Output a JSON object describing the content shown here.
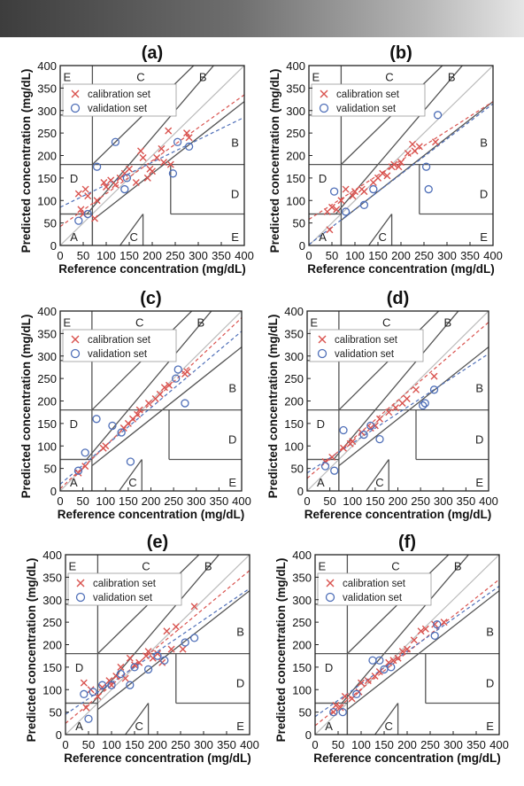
{
  "colors": {
    "calibration": "#d9534f",
    "validation": "#4f6fb8",
    "zone_line": "#555555",
    "identity_line": "#bbbbbb"
  },
  "chart_data": [
    {
      "type": "scatter",
      "title": "(a)",
      "xlabel": "Reference concentration (mg/dL)",
      "ylabel": "Predicted concentration (mg/dL)",
      "xlim": [
        0,
        400
      ],
      "ylim": [
        0,
        400
      ],
      "xticks": [
        0,
        50,
        100,
        150,
        200,
        250,
        300,
        350,
        400
      ],
      "yticks": [
        0,
        50,
        100,
        150,
        200,
        250,
        300,
        350,
        400
      ],
      "zone_labels": [
        "A",
        "B",
        "B",
        "C",
        "C",
        "D",
        "D",
        "E",
        "E"
      ],
      "legend": {
        "position": "top-left",
        "entries": [
          "calibration set",
          "validation set"
        ]
      },
      "series": [
        {
          "name": "calibration set",
          "marker": "x",
          "x": [
            40,
            45,
            50,
            55,
            60,
            75,
            80,
            95,
            100,
            110,
            120,
            130,
            140,
            150,
            165,
            175,
            180,
            190,
            195,
            200,
            210,
            220,
            225,
            235,
            240,
            275,
            280
          ],
          "y": [
            115,
            80,
            70,
            125,
            110,
            60,
            100,
            140,
            130,
            145,
            135,
            150,
            160,
            170,
            140,
            210,
            195,
            150,
            170,
            165,
            195,
            215,
            185,
            255,
            180,
            250,
            240
          ],
          "fit": {
            "x": [
              0,
              400
            ],
            "y": [
              42,
              335
            ]
          }
        },
        {
          "name": "validation set",
          "marker": "o",
          "x": [
            40,
            60,
            80,
            120,
            140,
            145,
            245,
            255,
            280
          ],
          "y": [
            55,
            70,
            175,
            230,
            125,
            150,
            160,
            230,
            220
          ],
          "fit": {
            "x": [
              0,
              400
            ],
            "y": [
              85,
              285
            ]
          }
        }
      ]
    },
    {
      "type": "scatter",
      "title": "(b)",
      "xlabel": "Reference concentration (mg/dL)",
      "ylabel": "Predicted concentration (mg/dL)",
      "xlim": [
        0,
        400
      ],
      "ylim": [
        0,
        400
      ],
      "xticks": [
        0,
        50,
        100,
        150,
        200,
        250,
        300,
        350,
        400
      ],
      "yticks": [
        0,
        50,
        100,
        150,
        200,
        250,
        300,
        350,
        400
      ],
      "zone_labels": [
        "A",
        "B",
        "B",
        "C",
        "C",
        "D",
        "D",
        "E",
        "E"
      ],
      "legend": {
        "position": "top-left",
        "entries": [
          "calibration set",
          "validation set"
        ]
      },
      "series": [
        {
          "name": "calibration set",
          "marker": "x",
          "x": [
            40,
            45,
            50,
            60,
            70,
            80,
            95,
            100,
            115,
            120,
            140,
            150,
            160,
            170,
            180,
            185,
            195,
            200,
            215,
            225,
            230,
            240,
            275
          ],
          "y": [
            75,
            35,
            85,
            80,
            100,
            125,
            110,
            120,
            125,
            120,
            140,
            150,
            160,
            155,
            175,
            180,
            175,
            185,
            205,
            225,
            210,
            220,
            230
          ],
          "fit": {
            "x": [
              0,
              400
            ],
            "y": [
              58,
              320
            ]
          }
        },
        {
          "name": "validation set",
          "marker": "o",
          "x": [
            55,
            80,
            120,
            140,
            255,
            260,
            280
          ],
          "y": [
            120,
            75,
            90,
            125,
            175,
            125,
            290
          ],
          "fit": {
            "x": [
              0,
              400
            ],
            "y": [
              2,
              315
            ]
          }
        }
      ]
    },
    {
      "type": "scatter",
      "title": "(c)",
      "xlabel": "Reference concentration (mg/dL)",
      "ylabel": "Predicted concentration (mg/dL)",
      "xlim": [
        0,
        400
      ],
      "ylim": [
        0,
        400
      ],
      "xticks": [
        0,
        50,
        100,
        150,
        200,
        250,
        300,
        350,
        400
      ],
      "yticks": [
        0,
        50,
        100,
        150,
        200,
        250,
        300,
        350,
        400
      ],
      "zone_labels": [
        "A",
        "B",
        "B",
        "C",
        "C",
        "D",
        "D",
        "E",
        "E"
      ],
      "legend": {
        "position": "top-left",
        "entries": [
          "calibration set",
          "validation set"
        ]
      },
      "series": [
        {
          "name": "calibration set",
          "marker": "x",
          "x": [
            40,
            55,
            95,
            100,
            140,
            150,
            160,
            170,
            175,
            195,
            210,
            220,
            230,
            240,
            275,
            280
          ],
          "y": [
            40,
            55,
            95,
            100,
            140,
            150,
            160,
            170,
            180,
            195,
            205,
            215,
            230,
            235,
            260,
            265
          ],
          "fit": {
            "x": [
              0,
              400
            ],
            "y": [
              5,
              385
            ]
          }
        },
        {
          "name": "validation set",
          "marker": "o",
          "x": [
            40,
            55,
            80,
            115,
            135,
            155,
            255,
            260,
            275
          ],
          "y": [
            45,
            85,
            160,
            145,
            130,
            65,
            250,
            270,
            195
          ],
          "fit": {
            "x": [
              0,
              400
            ],
            "y": [
              15,
              355
            ]
          }
        }
      ]
    },
    {
      "type": "scatter",
      "title": "(d)",
      "xlabel": "Reference concentration (mg/dL)",
      "ylabel": "Predicted concentration (mg/dL)",
      "xlim": [
        0,
        400
      ],
      "ylim": [
        0,
        400
      ],
      "xticks": [
        0,
        50,
        100,
        150,
        200,
        250,
        300,
        350,
        400
      ],
      "yticks": [
        0,
        50,
        100,
        150,
        200,
        250,
        300,
        350,
        400
      ],
      "zone_labels": [
        "A",
        "B",
        "B",
        "C",
        "C",
        "D",
        "D",
        "E",
        "E"
      ],
      "legend": {
        "position": "top-left",
        "entries": [
          "calibration set",
          "validation set"
        ]
      },
      "series": [
        {
          "name": "calibration set",
          "marker": "x",
          "x": [
            40,
            55,
            80,
            95,
            100,
            120,
            140,
            150,
            160,
            180,
            195,
            210,
            220,
            240,
            280
          ],
          "y": [
            65,
            75,
            95,
            105,
            110,
            130,
            140,
            145,
            160,
            175,
            185,
            195,
            205,
            225,
            255
          ],
          "fit": {
            "x": [
              0,
              400
            ],
            "y": [
              28,
              375
            ]
          }
        },
        {
          "name": "validation set",
          "marker": "o",
          "x": [
            40,
            60,
            80,
            125,
            140,
            160,
            255,
            260,
            280
          ],
          "y": [
            55,
            45,
            135,
            125,
            145,
            115,
            190,
            195,
            225
          ],
          "fit": {
            "x": [
              0,
              400
            ],
            "y": [
              40,
              305
            ]
          }
        }
      ]
    },
    {
      "type": "scatter",
      "title": "(e)",
      "xlabel": "Reference concentration (mg/dL)",
      "ylabel": "Predicted concentration (mg/dL)",
      "xlim": [
        0,
        400
      ],
      "ylim": [
        0,
        400
      ],
      "xticks": [
        0,
        50,
        100,
        150,
        200,
        250,
        300,
        350,
        400
      ],
      "yticks": [
        0,
        50,
        100,
        150,
        200,
        250,
        300,
        350,
        400
      ],
      "zone_labels": [
        "A",
        "B",
        "B",
        "C",
        "C",
        "D",
        "D",
        "E",
        "E"
      ],
      "legend": {
        "position": "top-left",
        "entries": [
          "calibration set",
          "validation set"
        ]
      },
      "series": [
        {
          "name": "calibration set",
          "marker": "x",
          "x": [
            40,
            45,
            55,
            70,
            80,
            95,
            100,
            110,
            120,
            130,
            140,
            150,
            160,
            175,
            180,
            190,
            200,
            210,
            220,
            230,
            240,
            255,
            280
          ],
          "y": [
            115,
            60,
            100,
            85,
            105,
            120,
            110,
            130,
            150,
            125,
            170,
            155,
            160,
            175,
            185,
            170,
            180,
            160,
            230,
            190,
            240,
            190,
            285
          ],
          "fit": {
            "x": [
              0,
              400
            ],
            "y": [
              25,
              365
            ]
          }
        },
        {
          "name": "validation set",
          "marker": "o",
          "x": [
            40,
            50,
            60,
            80,
            100,
            120,
            140,
            150,
            180,
            200,
            215,
            260,
            280
          ],
          "y": [
            90,
            35,
            95,
            110,
            110,
            135,
            110,
            150,
            145,
            175,
            165,
            205,
            215
          ],
          "fit": {
            "x": [
              0,
              400
            ],
            "y": [
              45,
              325
            ]
          }
        }
      ]
    },
    {
      "type": "scatter",
      "title": "(f)",
      "xlabel": "Reference concentration (mg/dL)",
      "ylabel": "Predicted concentration (mg/dL)",
      "xlim": [
        0,
        400
      ],
      "ylim": [
        0,
        400
      ],
      "xticks": [
        0,
        50,
        100,
        150,
        200,
        250,
        300,
        350,
        400
      ],
      "yticks": [
        0,
        50,
        100,
        150,
        200,
        250,
        300,
        350,
        400
      ],
      "zone_labels": [
        "A",
        "B",
        "B",
        "C",
        "C",
        "D",
        "D",
        "E",
        "E"
      ],
      "legend": {
        "position": "top-left",
        "entries": [
          "calibration set",
          "validation set"
        ]
      },
      "series": [
        {
          "name": "calibration set",
          "marker": "x",
          "x": [
            40,
            45,
            55,
            65,
            80,
            95,
            100,
            115,
            130,
            140,
            160,
            170,
            180,
            190,
            200,
            215,
            230,
            240,
            260,
            280
          ],
          "y": [
            50,
            65,
            60,
            85,
            80,
            95,
            115,
            120,
            130,
            140,
            160,
            165,
            170,
            185,
            190,
            210,
            230,
            235,
            245,
            250
          ],
          "fit": {
            "x": [
              0,
              400
            ],
            "y": [
              20,
              345
            ]
          }
        },
        {
          "name": "validation set",
          "marker": "o",
          "x": [
            40,
            60,
            90,
            125,
            140,
            150,
            165,
            260,
            265
          ],
          "y": [
            50,
            50,
            90,
            165,
            165,
            145,
            150,
            220,
            245
          ],
          "fit": {
            "x": [
              0,
              400
            ],
            "y": [
              40,
              330
            ]
          }
        }
      ]
    }
  ]
}
